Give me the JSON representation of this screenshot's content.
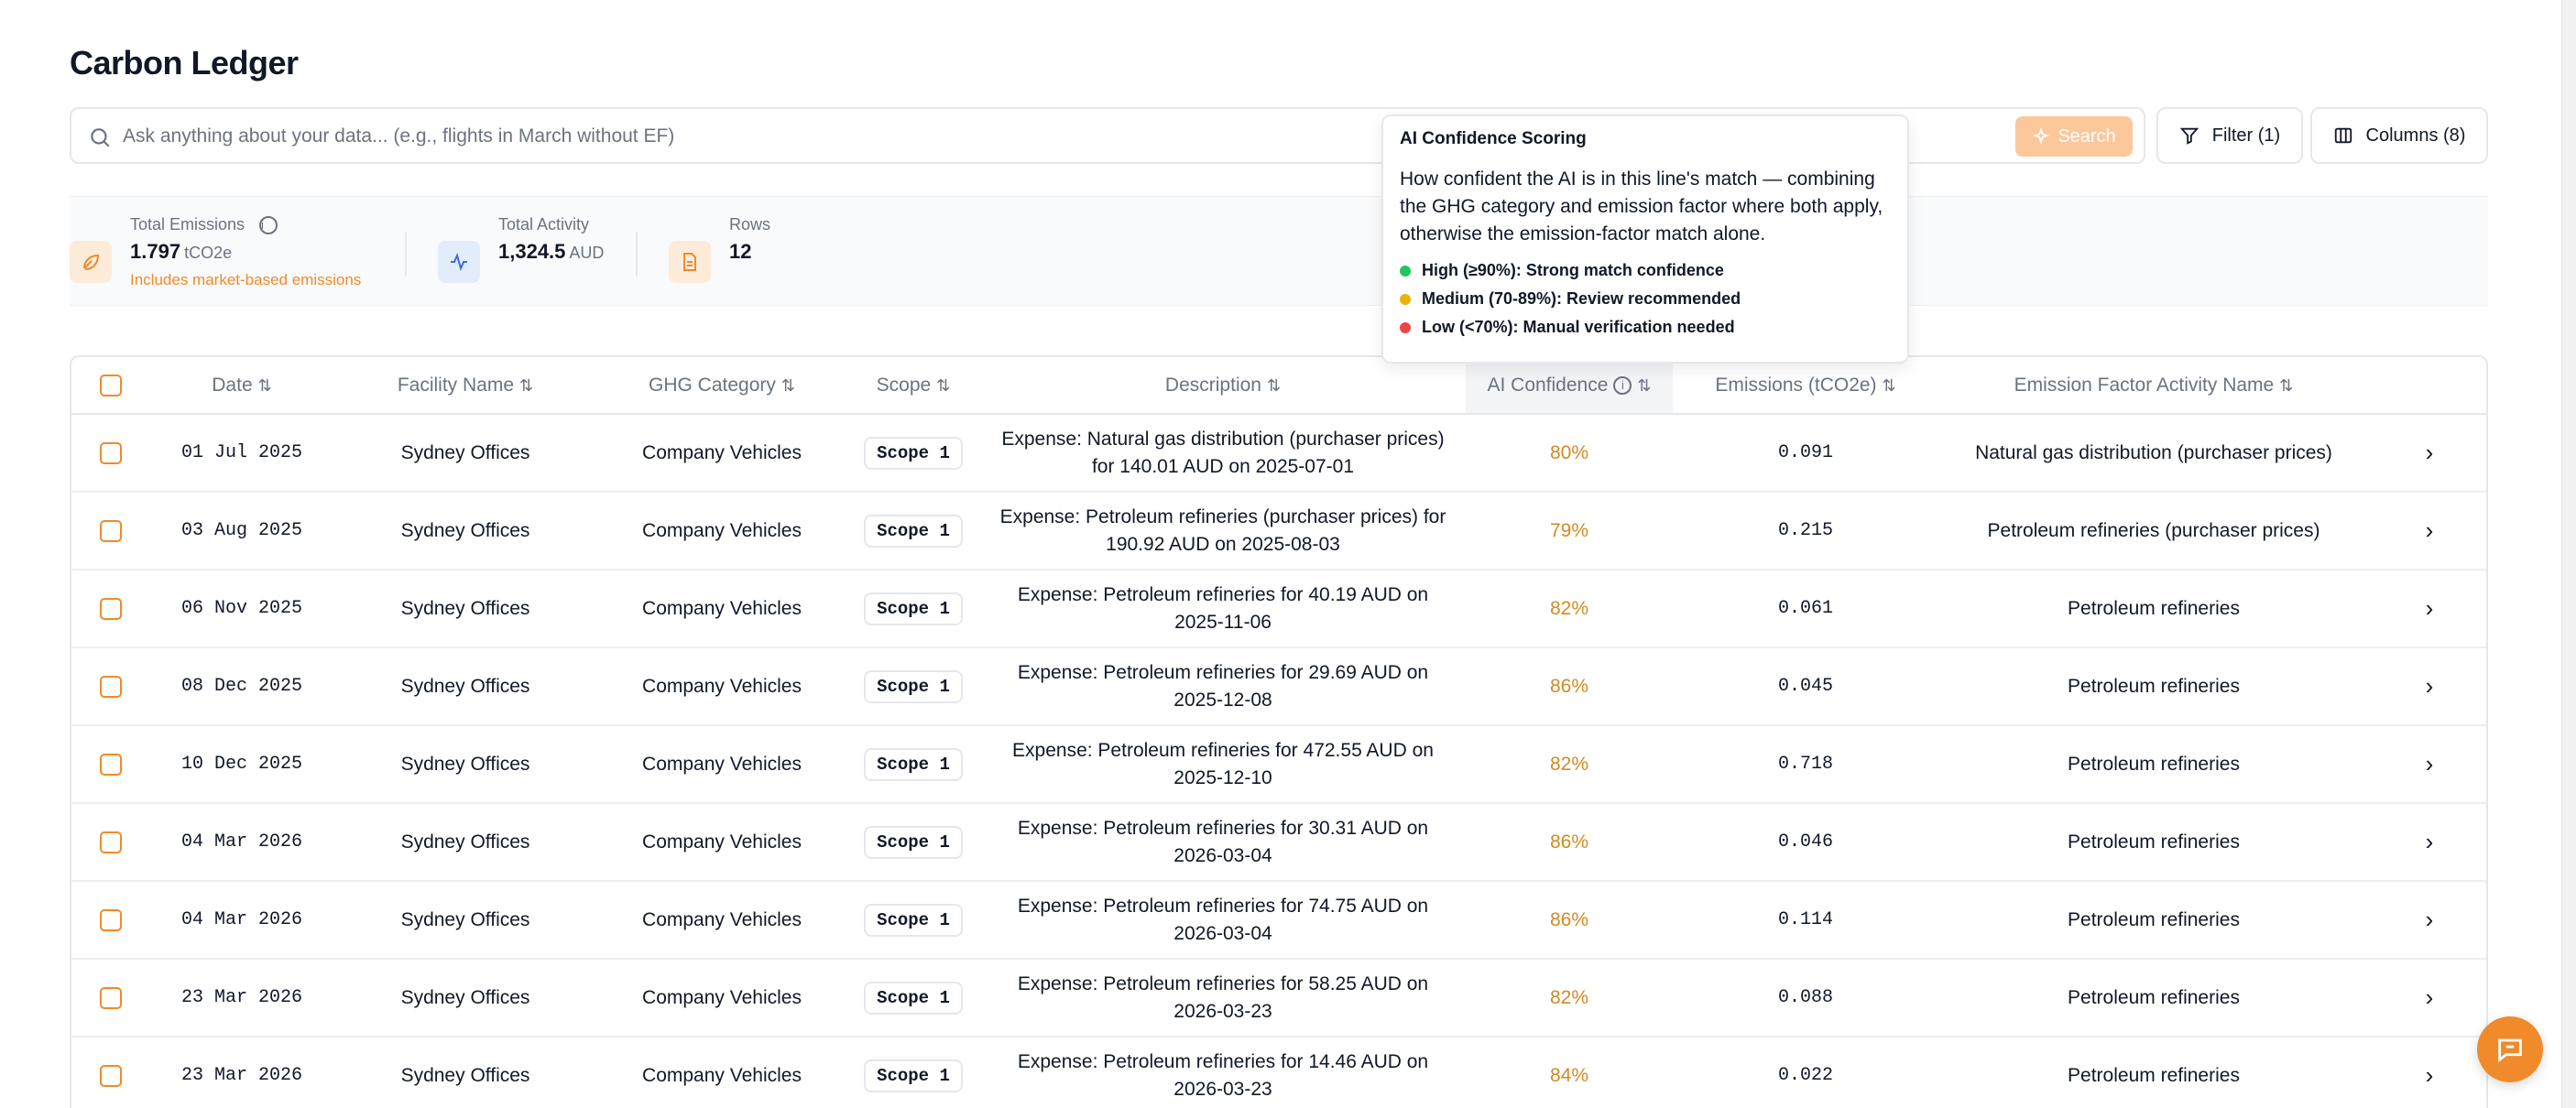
{
  "page": {
    "title": "Carbon Ledger"
  },
  "search": {
    "placeholder": "Ask anything about your data... (e.g., flights in March without EF)",
    "button_label": "Search"
  },
  "toolbar": {
    "filter_label": "Filter (1)",
    "columns_label": "Columns (8)"
  },
  "stats": {
    "total_emissions": {
      "label": "Total Emissions",
      "value": "1.797",
      "unit": "tCO2e",
      "note": "Includes market-based emissions"
    },
    "total_activity": {
      "label": "Total Activity",
      "value": "1,324.5",
      "unit": "AUD"
    },
    "rows": {
      "label": "Rows",
      "value": "12"
    }
  },
  "tooltip": {
    "title": "AI Confidence Scoring",
    "body": "How confident the AI is in this line's match — combining the GHG category and emission factor where both apply, otherwise the emission-factor match alone.",
    "levels": [
      {
        "label": "High (≥90%): Strong match confidence",
        "color": "#22c55e"
      },
      {
        "label": "Medium (70-89%): Review recommended",
        "color": "#eab308"
      },
      {
        "label": "Low (<70%): Manual verification needed",
        "color": "#ef4444"
      }
    ]
  },
  "table": {
    "headers": {
      "date": "Date",
      "facility": "Facility Name",
      "ghg": "GHG Category",
      "scope": "Scope",
      "description": "Description",
      "confidence": "AI Confidence",
      "emissions": "Emissions (tCO2e)",
      "ef_name": "Emission Factor Activity Name"
    },
    "rows": [
      {
        "date": "01 Jul 2025",
        "facility": "Sydney Offices",
        "ghg": "Company Vehicles",
        "scope": "Scope 1",
        "description": "Expense: Natural gas distribution (purchaser prices) for 140.01 AUD on 2025-07-01",
        "confidence": "80%",
        "emissions": "0.091",
        "ef_name": "Natural gas distribution (purchaser prices)"
      },
      {
        "date": "03 Aug 2025",
        "facility": "Sydney Offices",
        "ghg": "Company Vehicles",
        "scope": "Scope 1",
        "description": "Expense: Petroleum refineries (purchaser prices) for 190.92 AUD on 2025-08-03",
        "confidence": "79%",
        "emissions": "0.215",
        "ef_name": "Petroleum refineries (purchaser prices)"
      },
      {
        "date": "06 Nov 2025",
        "facility": "Sydney Offices",
        "ghg": "Company Vehicles",
        "scope": "Scope 1",
        "description": "Expense: Petroleum refineries for 40.19 AUD on 2025-11-06",
        "confidence": "82%",
        "emissions": "0.061",
        "ef_name": "Petroleum refineries"
      },
      {
        "date": "08 Dec 2025",
        "facility": "Sydney Offices",
        "ghg": "Company Vehicles",
        "scope": "Scope 1",
        "description": "Expense: Petroleum refineries for 29.69 AUD on 2025-12-08",
        "confidence": "86%",
        "emissions": "0.045",
        "ef_name": "Petroleum refineries"
      },
      {
        "date": "10 Dec 2025",
        "facility": "Sydney Offices",
        "ghg": "Company Vehicles",
        "scope": "Scope 1",
        "description": "Expense: Petroleum refineries for 472.55 AUD on 2025-12-10",
        "confidence": "82%",
        "emissions": "0.718",
        "ef_name": "Petroleum refineries"
      },
      {
        "date": "04 Mar 2026",
        "facility": "Sydney Offices",
        "ghg": "Company Vehicles",
        "scope": "Scope 1",
        "description": "Expense: Petroleum refineries for 30.31 AUD on 2026-03-04",
        "confidence": "86%",
        "emissions": "0.046",
        "ef_name": "Petroleum refineries"
      },
      {
        "date": "04 Mar 2026",
        "facility": "Sydney Offices",
        "ghg": "Company Vehicles",
        "scope": "Scope 1",
        "description": "Expense: Petroleum refineries for 74.75 AUD on 2026-03-04",
        "confidence": "86%",
        "emissions": "0.114",
        "ef_name": "Petroleum refineries"
      },
      {
        "date": "23 Mar 2026",
        "facility": "Sydney Offices",
        "ghg": "Company Vehicles",
        "scope": "Scope 1",
        "description": "Expense: Petroleum refineries for 58.25 AUD on 2026-03-23",
        "confidence": "82%",
        "emissions": "0.088",
        "ef_name": "Petroleum refineries"
      },
      {
        "date": "23 Mar 2026",
        "facility": "Sydney Offices",
        "ghg": "Company Vehicles",
        "scope": "Scope 1",
        "description": "Expense: Petroleum refineries for 14.46 AUD on 2026-03-23",
        "confidence": "84%",
        "emissions": "0.022",
        "ef_name": "Petroleum refineries"
      }
    ]
  },
  "colors": {
    "accent": "#f08a2a",
    "confidence_medium": "#d28a22"
  },
  "icons": {
    "search": "search-icon",
    "sparkle": "sparkle-icon",
    "filter": "filter-icon",
    "columns": "columns-icon",
    "leaf": "leaf-icon",
    "activity": "activity-icon",
    "document": "document-icon",
    "info": "info-icon",
    "sort": "sort-icon",
    "chevron": "chevron-right-icon",
    "chat": "chat-icon"
  }
}
